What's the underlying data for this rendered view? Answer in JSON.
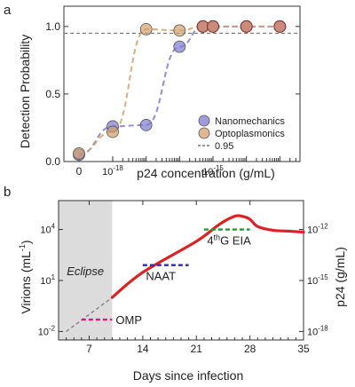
{
  "chart_data": [
    {
      "panel_label": "a",
      "type": "scatter",
      "xlabel": "p24 concentration (g/mL)",
      "ylabel": "Detection Probability",
      "x_scale": "log-with-zero",
      "x_tick_labels": [
        {
          "x": 0,
          "label": "0"
        },
        {
          "x": 1e-18,
          "label": "10",
          "exp": "-18"
        },
        {
          "x": 1e-15,
          "label": "10",
          "exp": "-15"
        }
      ],
      "y_ticks": [
        "0.0",
        "0.5",
        "1.0"
      ],
      "ylim": [
        0,
        1.15
      ],
      "threshold": {
        "value": 0.95,
        "label": "0.95"
      },
      "legend_position": "center-right",
      "series": [
        {
          "name": "Nanomechanics",
          "color": "#7f79d2",
          "points": [
            {
              "x": 0,
              "y": 0.05
            },
            {
              "x": 1e-18,
              "y": 0.26
            },
            {
              "x": 1e-17,
              "y": 0.27
            },
            {
              "x": 1e-16,
              "y": 0.85
            },
            {
              "x": 5e-16,
              "y": 1.0
            },
            {
              "x": 1e-15,
              "y": 1.0
            },
            {
              "x": 1e-14,
              "y": 1.0
            },
            {
              "x": 1e-13,
              "y": 1.0
            }
          ]
        },
        {
          "name": "Optoplasmonics",
          "color": "#d1a06b",
          "points": [
            {
              "x": 0,
              "y": 0.06
            },
            {
              "x": 1e-18,
              "y": 0.22
            },
            {
              "x": 1e-17,
              "y": 0.98
            },
            {
              "x": 1e-16,
              "y": 0.97
            },
            {
              "x": 5e-16,
              "y": 1.0
            },
            {
              "x": 1e-15,
              "y": 1.0
            },
            {
              "x": 1e-14,
              "y": 1.0
            },
            {
              "x": 1e-13,
              "y": 1.0
            }
          ]
        }
      ]
    },
    {
      "panel_label": "b",
      "type": "line",
      "xlabel": "Days since infection",
      "ylabel_left": "Virions (mL",
      "ylabel_left_sup": "-1",
      "ylabel_left_end": ")",
      "ylabel_right": "p24 (g/mL)",
      "x_ticks": [
        7,
        14,
        21,
        28,
        35
      ],
      "xlim": [
        3,
        35
      ],
      "left_y_scale": "log",
      "left_y_ticks": [
        {
          "value": 0.01,
          "base": "10",
          "exp": "-2"
        },
        {
          "value": 10,
          "base": "10",
          "exp": "1"
        },
        {
          "value": 10000,
          "base": "10",
          "exp": "4"
        }
      ],
      "right_y_ticks": [
        {
          "value": 1e-18,
          "base": "10",
          "exp": "-18"
        },
        {
          "value": 1e-15,
          "base": "10",
          "exp": "-15"
        },
        {
          "value": 1e-12,
          "base": "10",
          "exp": "-12"
        }
      ],
      "eclipse": {
        "label": "Eclipse",
        "from": 3,
        "to": 10
      },
      "viral_load": {
        "color": "#dd2222",
        "dashed_color": "#888888",
        "dashed": [
          [
            4,
            0.01
          ],
          [
            10,
            1
          ]
        ],
        "solid": [
          [
            10,
            1
          ],
          [
            14,
            30
          ],
          [
            21,
            2000
          ],
          [
            24,
            20000
          ],
          [
            26,
            60000
          ],
          [
            27,
            60000
          ],
          [
            28,
            40000
          ],
          [
            29,
            15000
          ],
          [
            31,
            9000
          ],
          [
            33,
            8000
          ],
          [
            35,
            7000
          ]
        ]
      },
      "detection_thresholds": [
        {
          "label": "OMP",
          "color": "#e0158e",
          "from": 6,
          "to": 10,
          "y": 0.05
        },
        {
          "label": "NAAT",
          "color": "#3026c9",
          "from": 14,
          "to": 20,
          "y": 80
        },
        {
          "label": "4",
          "label_sup": "th",
          "label_end": "G EIA",
          "color": "#1d9c2c",
          "from": 22,
          "to": 28,
          "y": 10000
        }
      ]
    }
  ]
}
